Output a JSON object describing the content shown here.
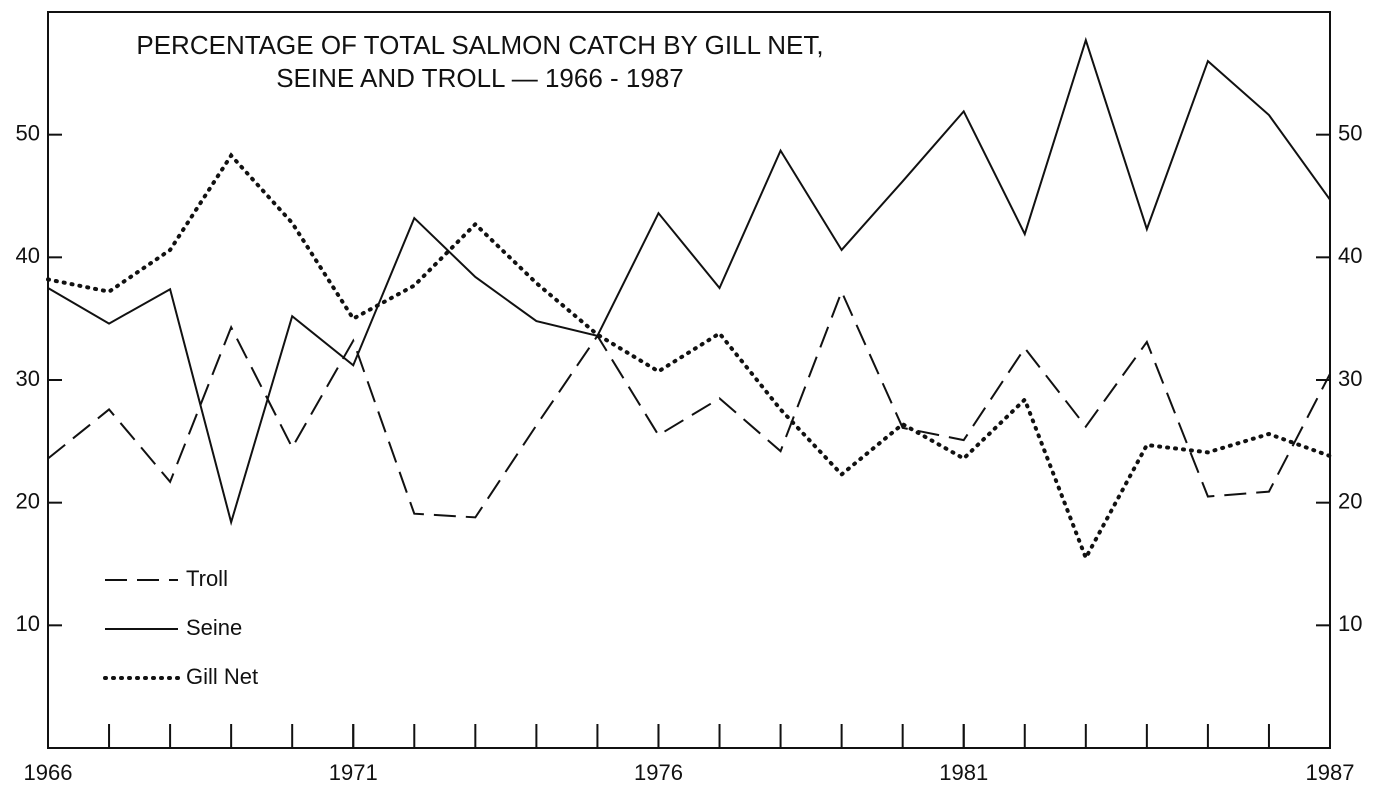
{
  "chart_data": {
    "type": "line",
    "title": [
      "PERCENTAGE OF TOTAL SALMON CATCH BY GILL NET,",
      "SEINE AND TROLL — 1966 - 1987"
    ],
    "x": [
      1966,
      1967,
      1968,
      1969,
      1970,
      1971,
      1972,
      1973,
      1974,
      1975,
      1976,
      1977,
      1978,
      1979,
      1980,
      1981,
      1982,
      1983,
      1984,
      1985,
      1986,
      1987
    ],
    "series": [
      {
        "name": "Troll",
        "color": "#111111",
        "style": "dashed",
        "values": [
          23.6,
          27.6,
          21.7,
          34.3,
          24.5,
          33.2,
          19.1,
          18.8,
          26.3,
          33.6,
          25.5,
          28.5,
          24.2,
          37.2,
          26.1,
          25.1,
          32.6,
          26.2,
          33.1,
          20.5,
          20.9,
          30.5
        ]
      },
      {
        "name": "Seine",
        "color": "#111111",
        "style": "solid",
        "values": [
          37.5,
          34.6,
          37.4,
          18.4,
          35.2,
          31.2,
          43.2,
          38.4,
          34.8,
          33.6,
          43.6,
          37.5,
          48.7,
          40.6,
          46.2,
          51.9,
          41.9,
          57.7,
          42.3,
          56.0,
          51.6,
          44.7
        ]
      },
      {
        "name": "Gill Net",
        "color": "#111111",
        "style": "dotted",
        "values": [
          38.2,
          37.2,
          40.6,
          48.3,
          42.8,
          35.0,
          37.7,
          42.7,
          37.9,
          33.7,
          30.7,
          33.8,
          27.6,
          22.3,
          26.4,
          23.6,
          28.4,
          15.5,
          24.7,
          24.1,
          25.6,
          23.8
        ]
      }
    ],
    "xlim": [
      1966,
      1987
    ],
    "xticks": [
      1966,
      1971,
      1976,
      1981,
      1987
    ],
    "ylim": [
      0,
      60
    ],
    "yticks": [
      10,
      20,
      30,
      40,
      50
    ],
    "y2lim": [
      0,
      60
    ],
    "y2ticks": [
      10,
      20,
      30,
      40,
      50
    ],
    "legend": "lower left",
    "grid": false
  }
}
